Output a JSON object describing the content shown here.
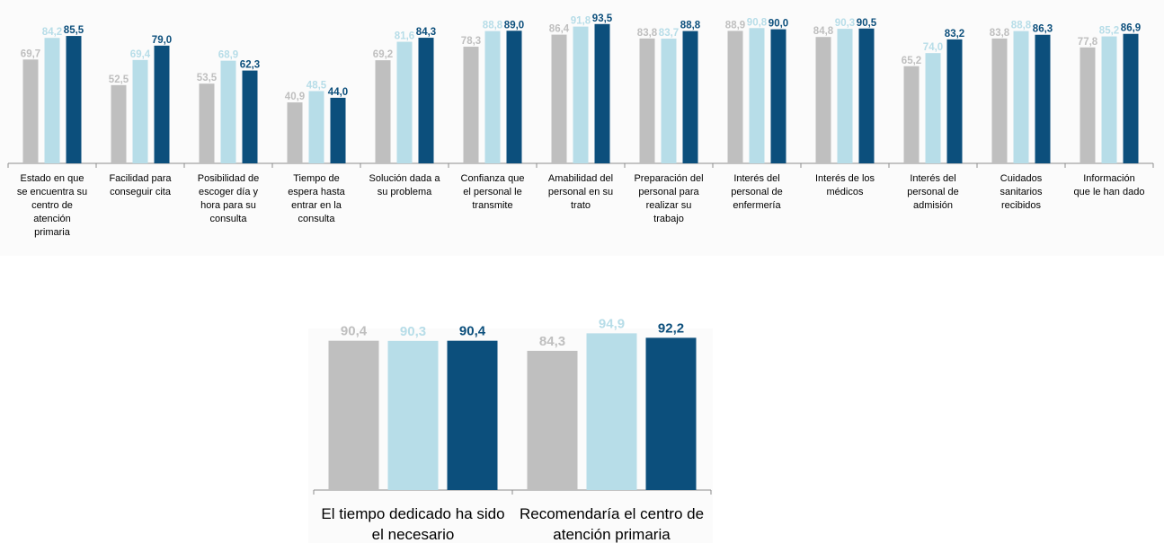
{
  "chart_data": [
    {
      "type": "bar",
      "categories": [
        [
          "Estado en que",
          "se encuentra su",
          "centro de",
          "atención",
          "primaria"
        ],
        [
          "Facilidad para",
          "conseguir cita"
        ],
        [
          "Posibilidad de",
          "escoger día y",
          "hora para su",
          "consulta"
        ],
        [
          "Tiempo de",
          "espera hasta",
          "entrar en la",
          "consulta"
        ],
        [
          "Solución dada a",
          "su problema"
        ],
        [
          "Confianza que",
          "el personal le",
          "transmite"
        ],
        [
          "Amabilidad del",
          "personal en su",
          "trato"
        ],
        [
          "Preparación del",
          "personal para",
          "realizar su",
          "trabajo"
        ],
        [
          "Interés del",
          "personal de",
          "enfermería"
        ],
        [
          "Interés de los",
          "médicos"
        ],
        [
          "Interés del",
          "personal de",
          "admisión"
        ],
        [
          "Cuidados",
          "sanitarios",
          "recibidos"
        ],
        [
          "Información",
          "que le han dado"
        ]
      ],
      "series": [
        {
          "color": "#bfbfbf",
          "values": [
            69.7,
            52.5,
            53.5,
            40.9,
            69.2,
            78.3,
            86.4,
            83.8,
            88.9,
            84.8,
            65.2,
            83.8,
            77.8
          ],
          "labels": [
            "69,7",
            "52,5",
            "53,5",
            "40,9",
            "69,2",
            "78,3",
            "86,4",
            "83,8",
            "88,9",
            "84,8",
            "65,2",
            "83,8",
            "77,8"
          ]
        },
        {
          "color": "#b7dde8",
          "values": [
            84.2,
            69.4,
            68.9,
            48.5,
            81.6,
            88.8,
            91.8,
            83.7,
            90.8,
            90.3,
            74.0,
            88.8,
            85.2
          ],
          "labels": [
            "84,2",
            "69,4",
            "68,9",
            "48,5",
            "81,6",
            "88,8",
            "91,8",
            "83,7",
            "90,8",
            "90,3",
            "74,0",
            "88,8",
            "85,2"
          ]
        },
        {
          "color": "#0c4f7c",
          "values": [
            85.5,
            79.0,
            62.3,
            44.0,
            84.3,
            89.0,
            93.5,
            88.8,
            90.0,
            90.5,
            83.2,
            86.3,
            86.9
          ],
          "labels": [
            "85,5",
            "79,0",
            "62,3",
            "44,0",
            "84,3",
            "89,0",
            "93,5",
            "88,8",
            "90,0",
            "90,5",
            "83,2",
            "86,3",
            "86,9"
          ]
        }
      ],
      "ylim": [
        0,
        100
      ],
      "grid": false
    },
    {
      "type": "bar",
      "categories": [
        [
          "El tiempo dedicado ha sido",
          "el necesario"
        ],
        [
          "Recomendaría el centro de",
          "atención primaria"
        ]
      ],
      "series": [
        {
          "color": "#bfbfbf",
          "values": [
            90.4,
            84.3
          ],
          "labels": [
            "90,4",
            "84,3"
          ]
        },
        {
          "color": "#b7dde8",
          "values": [
            90.3,
            94.9
          ],
          "labels": [
            "90,3",
            "94,9"
          ]
        },
        {
          "color": "#0c4f7c",
          "values": [
            90.4,
            92.2
          ],
          "labels": [
            "90,4",
            "92,2"
          ]
        }
      ],
      "ylim": [
        0,
        100
      ],
      "grid": false
    }
  ]
}
